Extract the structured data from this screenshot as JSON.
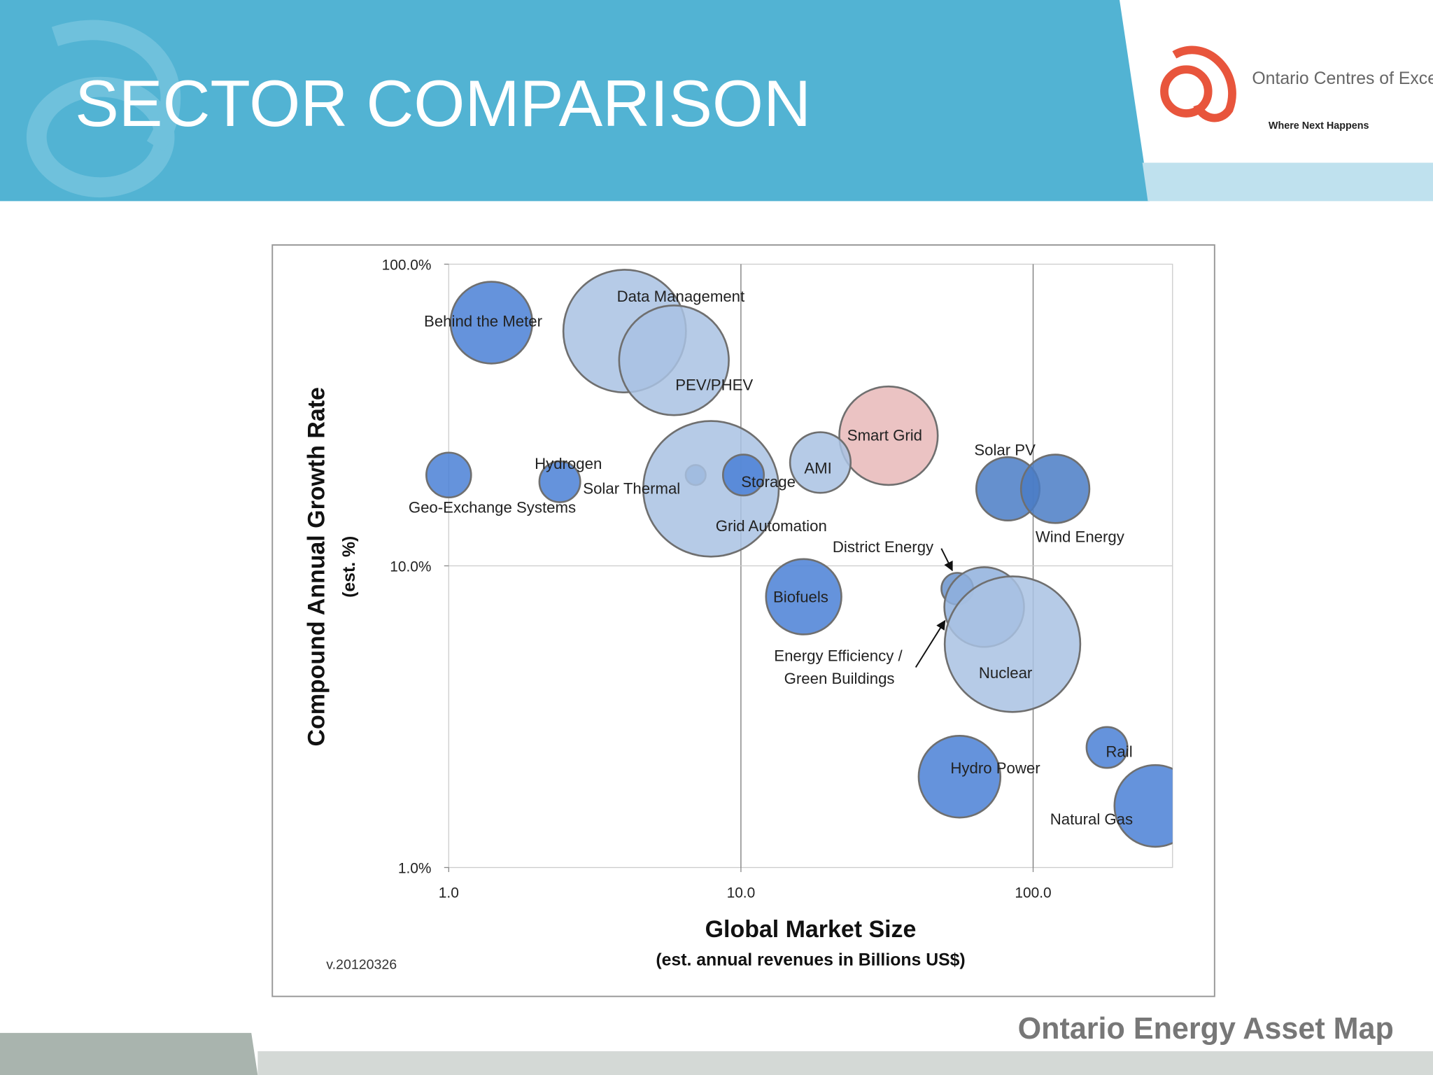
{
  "header": {
    "title": "SECTOR COMPARISON",
    "logo_name": "Ontario Centres of Excellence",
    "logo_tagline": "Where Next Happens"
  },
  "footer": "Ontario Energy Asset Map",
  "chart_data": {
    "type": "bubble",
    "x_title": "Global Market Size",
    "x_subtitle": "(est. annual revenues in Billions US$)",
    "y_title": "Compound Annual Growth Rate",
    "y_subtitle": "(est. %)",
    "annotation": "v.20120326",
    "log_x": true,
    "log_y": true,
    "xlim": [
      1,
      300
    ],
    "ylim": [
      1,
      100
    ],
    "xticks": [
      {
        "value": 1,
        "label": "1.0"
      },
      {
        "value": 10,
        "label": "10.0"
      },
      {
        "value": 100,
        "label": "100.0"
      }
    ],
    "yticks": [
      {
        "value": 1,
        "label": "1.0%"
      },
      {
        "value": 10,
        "label": "10.0%"
      },
      {
        "value": 100,
        "label": "100.0%"
      }
    ],
    "names": [
      "Behind the Meter",
      "Data Management",
      "PEV/PHEV",
      "Smart Grid",
      "AMI",
      "Geo-Exchange Systems",
      "Hydrogen",
      "Solar Thermal",
      "Grid Automation",
      "Storage",
      "Solar PV",
      "Wind Energy",
      "Biofuels",
      "District Energy",
      "Energy Efficiency / Green Buildings",
      "Nuclear",
      "Rail",
      "Hydro Power",
      "Natural Gas"
    ],
    "x": [
      1.4,
      4.0,
      5.9,
      32,
      18.7,
      1.0,
      2.4,
      7.0,
      7.9,
      10.2,
      82,
      119,
      16.4,
      55,
      68,
      85,
      179,
      56,
      262
    ],
    "values": [
      64,
      60,
      48,
      27,
      22,
      20,
      19,
      20,
      18,
      20,
      18,
      18,
      7.9,
      8.4,
      7.3,
      5.5,
      2.5,
      2.0,
      1.6
    ],
    "sizes": [
      20,
      45,
      36,
      29,
      11,
      6,
      5,
      1.2,
      55,
      5,
      12,
      14,
      17,
      3,
      19,
      55,
      5,
      20,
      20
    ],
    "colors": [
      "#4a80d6",
      "#a9c2e3",
      "#a9c2e3",
      "#e8b9b9",
      "#a9c2e3",
      "#4a80d6",
      "#4a80d6",
      "#5b87c9",
      "#a9c2e3",
      "#4a80d6",
      "#4a7cc6",
      "#4a7cc6",
      "#4a80d6",
      "#6a93cc",
      "#8fb0dd",
      "#a9c2e3",
      "#4a80d6",
      "#4a80d6",
      "#4a80d6"
    ],
    "grid": true
  }
}
